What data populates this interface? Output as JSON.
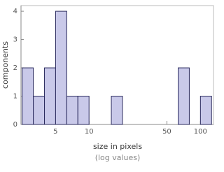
{
  "chart_data": {
    "type": "histogram",
    "log_x": true,
    "x_label": "size in pixels",
    "x_sublabel": "(log values)",
    "y_label": "components",
    "bins": [
      2.51,
      3.16,
      3.98,
      5.01,
      6.31,
      7.94,
      10,
      12.59,
      15.85,
      19.95,
      25.12,
      31.62,
      39.81,
      50.12,
      63.1,
      79.43,
      100,
      125.89
    ],
    "values": [
      2,
      1,
      2,
      4,
      1,
      1,
      0,
      0,
      1,
      0,
      0,
      0,
      0,
      0,
      2,
      0,
      1
    ],
    "color": "#c9c9e9",
    "edge_color": "#2b2b5e",
    "xlim": [
      2.45,
      131
    ],
    "xticks": [
      5,
      10,
      50,
      100
    ],
    "ylim": [
      0,
      4.2
    ],
    "yticks": [
      0,
      1,
      2,
      3,
      4
    ]
  }
}
